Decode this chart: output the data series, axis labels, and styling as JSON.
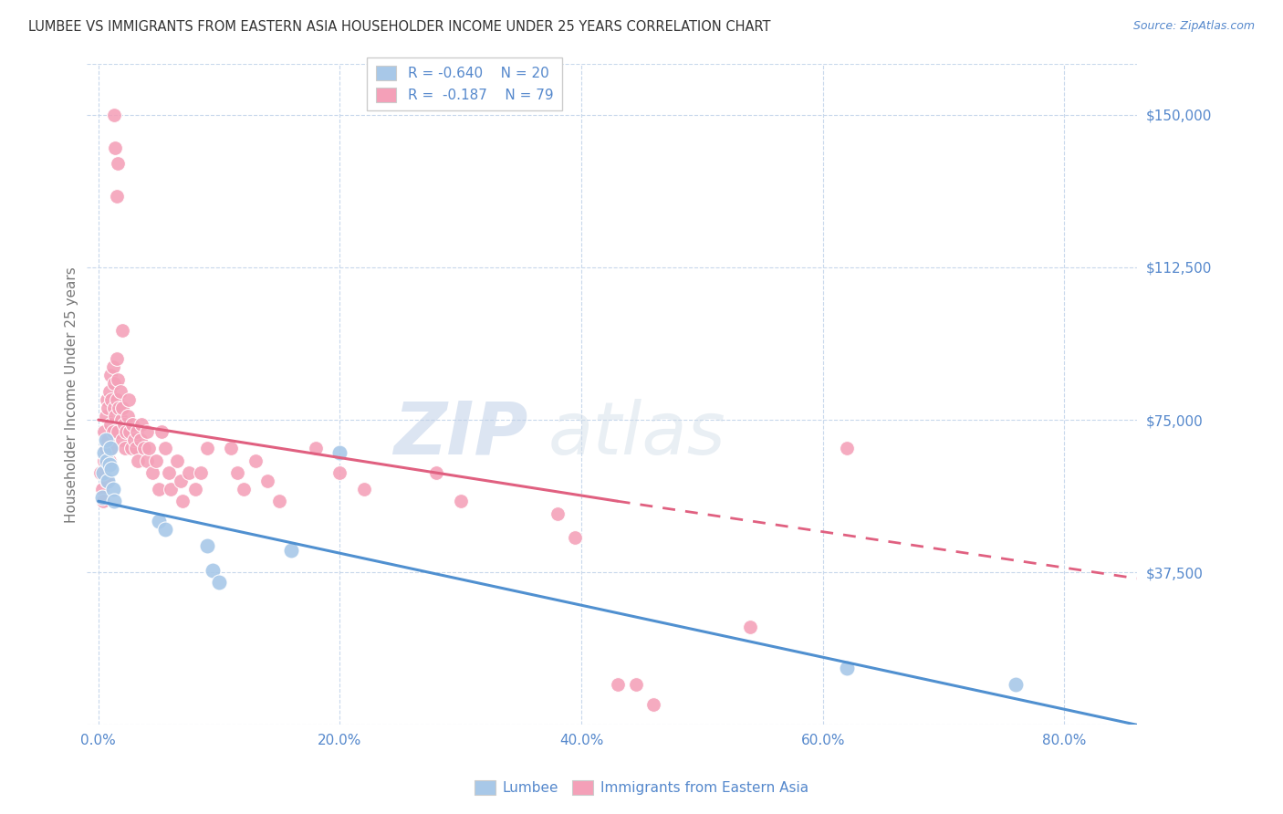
{
  "title": "LUMBEE VS IMMIGRANTS FROM EASTERN ASIA HOUSEHOLDER INCOME UNDER 25 YEARS CORRELATION CHART",
  "source": "Source: ZipAtlas.com",
  "ylabel": "Householder Income Under 25 years",
  "x_tick_labels": [
    "0.0%",
    "20.0%",
    "40.0%",
    "60.0%",
    "80.0%"
  ],
  "x_tick_positions": [
    0.0,
    0.2,
    0.4,
    0.6,
    0.8
  ],
  "y_tick_labels": [
    "$37,500",
    "$75,000",
    "$112,500",
    "$150,000"
  ],
  "y_tick_values": [
    37500,
    75000,
    112500,
    150000
  ],
  "y_min": 0,
  "y_max": 162500,
  "x_min": -0.01,
  "x_max": 0.86,
  "blue_color": "#a8c8e8",
  "pink_color": "#f4a0b8",
  "blue_line_color": "#5090d0",
  "pink_line_color": "#e06080",
  "text_color": "#5588cc",
  "grid_color": "#c8d8ec",
  "background_color": "#ffffff",
  "lumbee_points": [
    [
      0.003,
      56000
    ],
    [
      0.004,
      62000
    ],
    [
      0.005,
      67000
    ],
    [
      0.006,
      70000
    ],
    [
      0.007,
      65000
    ],
    [
      0.008,
      60000
    ],
    [
      0.009,
      64000
    ],
    [
      0.01,
      68000
    ],
    [
      0.011,
      63000
    ],
    [
      0.012,
      58000
    ],
    [
      0.013,
      55000
    ],
    [
      0.05,
      50000
    ],
    [
      0.055,
      48000
    ],
    [
      0.09,
      44000
    ],
    [
      0.095,
      38000
    ],
    [
      0.1,
      35000
    ],
    [
      0.16,
      43000
    ],
    [
      0.2,
      67000
    ],
    [
      0.62,
      14000
    ],
    [
      0.76,
      10000
    ]
  ],
  "eastern_asia_points": [
    [
      0.002,
      62000
    ],
    [
      0.003,
      58000
    ],
    [
      0.004,
      55000
    ],
    [
      0.005,
      65000
    ],
    [
      0.005,
      72000
    ],
    [
      0.006,
      68000
    ],
    [
      0.006,
      76000
    ],
    [
      0.007,
      60000
    ],
    [
      0.007,
      80000
    ],
    [
      0.008,
      70000
    ],
    [
      0.008,
      78000
    ],
    [
      0.009,
      65000
    ],
    [
      0.009,
      82000
    ],
    [
      0.01,
      74000
    ],
    [
      0.01,
      86000
    ],
    [
      0.011,
      68000
    ],
    [
      0.011,
      80000
    ],
    [
      0.012,
      72000
    ],
    [
      0.012,
      88000
    ],
    [
      0.013,
      78000
    ],
    [
      0.013,
      84000
    ],
    [
      0.014,
      76000
    ],
    [
      0.015,
      80000
    ],
    [
      0.015,
      90000
    ],
    [
      0.016,
      72000
    ],
    [
      0.016,
      85000
    ],
    [
      0.017,
      78000
    ],
    [
      0.018,
      82000
    ],
    [
      0.019,
      75000
    ],
    [
      0.02,
      70000
    ],
    [
      0.02,
      78000
    ],
    [
      0.021,
      74000
    ],
    [
      0.022,
      68000
    ],
    [
      0.023,
      72000
    ],
    [
      0.024,
      76000
    ],
    [
      0.025,
      80000
    ],
    [
      0.026,
      72000
    ],
    [
      0.027,
      68000
    ],
    [
      0.028,
      74000
    ],
    [
      0.03,
      70000
    ],
    [
      0.031,
      68000
    ],
    [
      0.032,
      72000
    ],
    [
      0.033,
      65000
    ],
    [
      0.035,
      70000
    ],
    [
      0.036,
      74000
    ],
    [
      0.038,
      68000
    ],
    [
      0.04,
      72000
    ],
    [
      0.04,
      65000
    ],
    [
      0.042,
      68000
    ],
    [
      0.045,
      62000
    ],
    [
      0.048,
      65000
    ],
    [
      0.05,
      58000
    ],
    [
      0.052,
      72000
    ],
    [
      0.055,
      68000
    ],
    [
      0.058,
      62000
    ],
    [
      0.06,
      58000
    ],
    [
      0.065,
      65000
    ],
    [
      0.068,
      60000
    ],
    [
      0.07,
      55000
    ],
    [
      0.075,
      62000
    ],
    [
      0.08,
      58000
    ],
    [
      0.085,
      62000
    ],
    [
      0.09,
      68000
    ],
    [
      0.11,
      68000
    ],
    [
      0.115,
      62000
    ],
    [
      0.12,
      58000
    ],
    [
      0.13,
      65000
    ],
    [
      0.14,
      60000
    ],
    [
      0.15,
      55000
    ],
    [
      0.18,
      68000
    ],
    [
      0.2,
      62000
    ],
    [
      0.22,
      58000
    ],
    [
      0.28,
      62000
    ],
    [
      0.3,
      55000
    ],
    [
      0.38,
      52000
    ],
    [
      0.395,
      46000
    ],
    [
      0.43,
      10000
    ],
    [
      0.445,
      10000
    ],
    [
      0.46,
      5000
    ],
    [
      0.54,
      24000
    ],
    [
      0.62,
      68000
    ],
    [
      0.02,
      97000
    ],
    [
      0.015,
      130000
    ],
    [
      0.016,
      138000
    ],
    [
      0.013,
      150000
    ],
    [
      0.014,
      142000
    ]
  ],
  "lumbee_trendline": [
    [
      0.0,
      55000
    ],
    [
      0.86,
      0
    ]
  ],
  "eastern_asia_trendline_solid": [
    [
      0.0,
      75000
    ],
    [
      0.43,
      55000
    ]
  ],
  "eastern_asia_trendline_dashed": [
    [
      0.43,
      55000
    ],
    [
      0.86,
      36000
    ]
  ]
}
